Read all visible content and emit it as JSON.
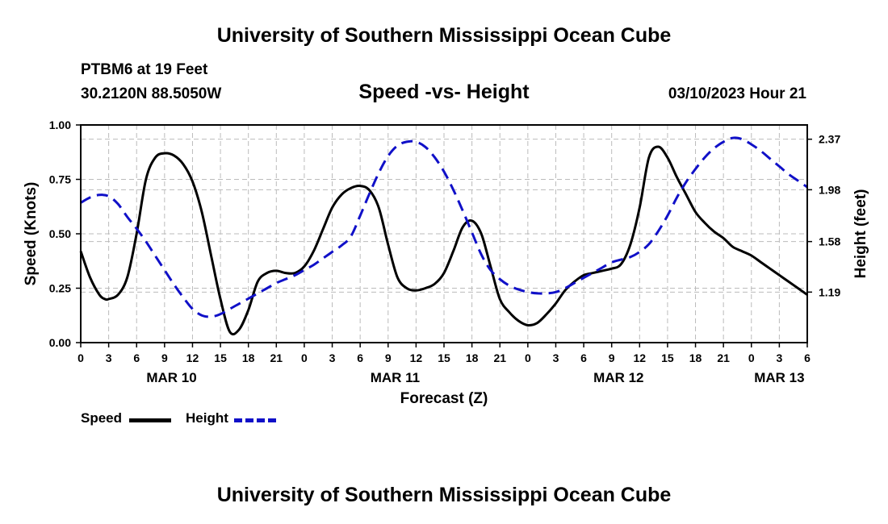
{
  "header": {
    "title": "University of Southern Mississippi Ocean Cube",
    "station": "PTBM6 at 19 Feet",
    "coords": "30.2120N  88.5050W",
    "subtitle": "Speed -vs- Height",
    "datetime": "03/10/2023 Hour 21"
  },
  "footer": {
    "title": "University of Southern Mississippi Ocean Cube"
  },
  "colors": {
    "speed": "#000000",
    "height": "#1010c8",
    "grid": "#bbbbbb"
  },
  "chart_data": {
    "type": "line",
    "title": "Speed -vs- Height",
    "xlabel": "Forecast (Z)",
    "ylabel_left": "Speed (Knots)",
    "ylabel_right": "Height (feet)",
    "xlim": [
      0,
      78
    ],
    "ylim_left": [
      0,
      1.0
    ],
    "ylim_right": [
      0.8,
      2.48
    ],
    "left_ticks": [
      "0.00",
      "0.25",
      "0.50",
      "0.75",
      "1.00"
    ],
    "right_ticks": [
      "1.19",
      "1.58",
      "1.98",
      "2.37"
    ],
    "right_tick_values": [
      1.19,
      1.58,
      1.98,
      2.37
    ],
    "x_tick_labels": [
      "0",
      "3",
      "6",
      "9",
      "12",
      "15",
      "18",
      "21",
      "0",
      "3",
      "6",
      "9",
      "12",
      "15",
      "18",
      "21",
      "0",
      "3",
      "6",
      "9",
      "12",
      "15",
      "18",
      "21",
      "0",
      "3",
      "6"
    ],
    "date_labels": [
      {
        "label": "MAR 10",
        "hour": 9.75
      },
      {
        "label": "MAR 11",
        "hour": 33.75
      },
      {
        "label": "MAR 12",
        "hour": 57.75
      },
      {
        "label": "MAR 13",
        "hour": 75.0
      }
    ],
    "legend": [
      "Speed",
      "Height"
    ],
    "series": [
      {
        "name": "Speed",
        "axis": "left",
        "style": "solid",
        "x": [
          0,
          1,
          2,
          2.6,
          3,
          4,
          5,
          6,
          7,
          8,
          9,
          10,
          11,
          12,
          13,
          14,
          15,
          16,
          17,
          18,
          19,
          20,
          21,
          22,
          23,
          24,
          25,
          26,
          27,
          28,
          29,
          30,
          31,
          32,
          33,
          34,
          35,
          36,
          37,
          38,
          39,
          40,
          41,
          42,
          43,
          44,
          45,
          46,
          47,
          48,
          49,
          50,
          51,
          52,
          53,
          54,
          55,
          56,
          57,
          58,
          59,
          60,
          61,
          62,
          63,
          64,
          65,
          66,
          67,
          68,
          69,
          70,
          71,
          72,
          73,
          74,
          75,
          76,
          77,
          78
        ],
        "values": [
          0.42,
          0.3,
          0.22,
          0.2,
          0.2,
          0.22,
          0.3,
          0.5,
          0.75,
          0.85,
          0.87,
          0.86,
          0.82,
          0.74,
          0.6,
          0.4,
          0.2,
          0.05,
          0.06,
          0.15,
          0.28,
          0.32,
          0.33,
          0.32,
          0.32,
          0.35,
          0.42,
          0.52,
          0.62,
          0.68,
          0.71,
          0.72,
          0.7,
          0.62,
          0.45,
          0.3,
          0.25,
          0.24,
          0.25,
          0.27,
          0.32,
          0.42,
          0.53,
          0.56,
          0.5,
          0.35,
          0.2,
          0.14,
          0.1,
          0.08,
          0.09,
          0.13,
          0.18,
          0.24,
          0.28,
          0.31,
          0.32,
          0.33,
          0.34,
          0.36,
          0.45,
          0.62,
          0.85,
          0.9,
          0.85,
          0.76,
          0.68,
          0.6,
          0.55,
          0.51,
          0.48,
          0.44,
          0.42,
          0.4,
          0.37,
          0.34,
          0.31,
          0.28,
          0.25,
          0.22
        ]
      },
      {
        "name": "Height",
        "axis": "right",
        "style": "dashed",
        "x": [
          0,
          1,
          2,
          3,
          4,
          5,
          6,
          7,
          8,
          9,
          10,
          11,
          12,
          13,
          14,
          15,
          16,
          17,
          18,
          19,
          20,
          21,
          22,
          23,
          24,
          25,
          26,
          27,
          28,
          29,
          30,
          31,
          32,
          33,
          34,
          35,
          36,
          37,
          38,
          39,
          40,
          41,
          42,
          43,
          44,
          45,
          46,
          47,
          48,
          49,
          50,
          51,
          52,
          53,
          54,
          55,
          56,
          57,
          58,
          59,
          60,
          61,
          62,
          63,
          64,
          65,
          66,
          67,
          68,
          69,
          70,
          71,
          72,
          73,
          74,
          75,
          76,
          77,
          78
        ],
        "values": [
          1.88,
          1.92,
          1.94,
          1.93,
          1.87,
          1.77,
          1.68,
          1.58,
          1.47,
          1.36,
          1.25,
          1.15,
          1.06,
          1.01,
          1.0,
          1.02,
          1.06,
          1.1,
          1.14,
          1.18,
          1.22,
          1.26,
          1.29,
          1.32,
          1.36,
          1.4,
          1.45,
          1.5,
          1.55,
          1.62,
          1.78,
          1.95,
          2.11,
          2.24,
          2.32,
          2.35,
          2.35,
          2.31,
          2.23,
          2.12,
          1.98,
          1.82,
          1.65,
          1.48,
          1.36,
          1.29,
          1.24,
          1.21,
          1.19,
          1.18,
          1.18,
          1.19,
          1.22,
          1.26,
          1.3,
          1.34,
          1.38,
          1.42,
          1.44,
          1.46,
          1.5,
          1.56,
          1.66,
          1.78,
          1.92,
          2.04,
          2.14,
          2.23,
          2.3,
          2.35,
          2.38,
          2.37,
          2.33,
          2.28,
          2.22,
          2.16,
          2.1,
          2.05,
          2.0
        ]
      }
    ]
  }
}
